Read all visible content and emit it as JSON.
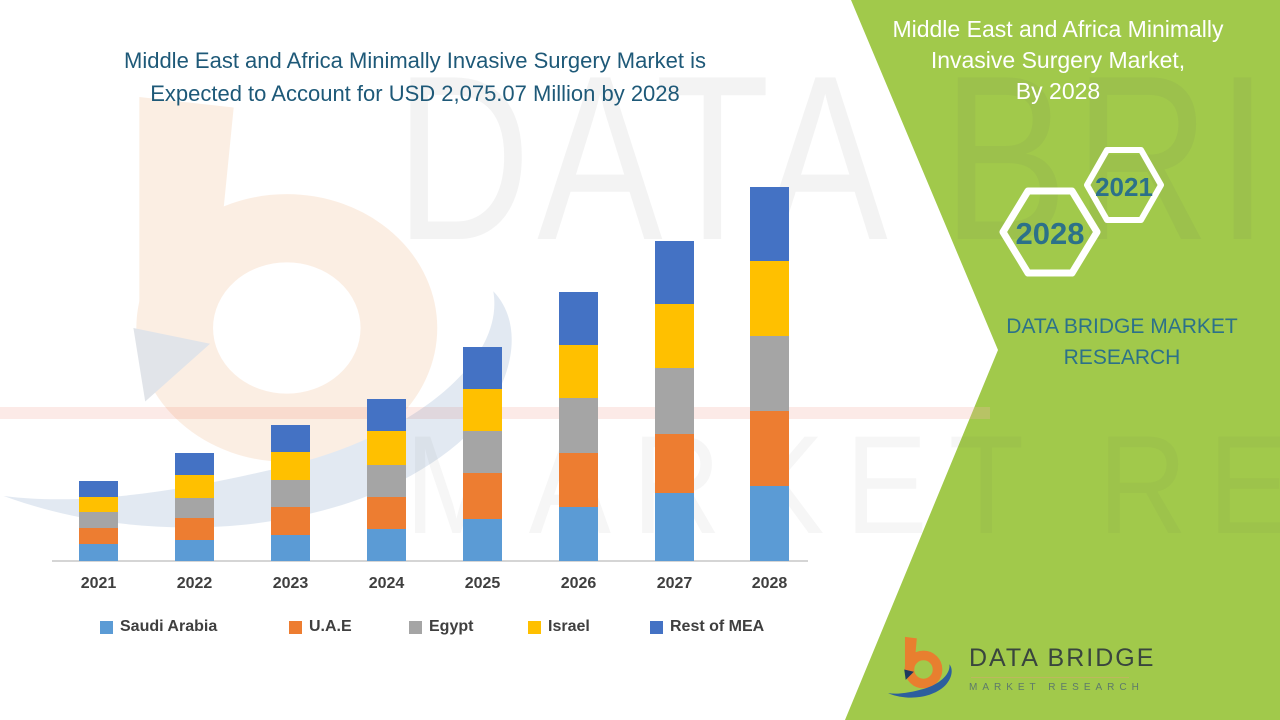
{
  "title": {
    "line1": "Middle East and Africa Minimally Invasive Surgery Market is",
    "line2": "Expected to Account for USD 2,075.07 Million by 2028",
    "color": "#1e5978"
  },
  "chart_data": {
    "type": "bar",
    "stacked": true,
    "title": "Middle East and Africa Minimally Invasive Surgery Market is Expected to Account for USD 2,075.07 Million by 2028",
    "unit": "USD Million",
    "categories": [
      "2021",
      "2022",
      "2023",
      "2024",
      "2025",
      "2026",
      "2027",
      "2028"
    ],
    "series": [
      {
        "name": "Saudi Arabia",
        "color": "#5B9BD5",
        "values": [
          94,
          116,
          144,
          176,
          233,
          301,
          377,
          416
        ]
      },
      {
        "name": "U.A.E",
        "color": "#ED7D31",
        "values": [
          90,
          124,
          157,
          176,
          253,
          299,
          329,
          416
        ]
      },
      {
        "name": "Egypt",
        "color": "#A5A5A5",
        "values": [
          89,
          111,
          151,
          177,
          235,
          305,
          364,
          416
        ]
      },
      {
        "name": "Israel",
        "color": "#FFC000",
        "values": [
          83,
          129,
          154,
          188,
          233,
          292,
          357,
          416
        ]
      },
      {
        "name": "Rest of MEA",
        "color": "#4472C4",
        "values": [
          89,
          120,
          148,
          176,
          235,
          292,
          351,
          411.07
        ]
      }
    ],
    "totals_usd_million_estimated": [
      445,
      600,
      754,
      893,
      1189,
      1489,
      1778,
      2075.07
    ],
    "note": "Segment values estimated from bar heights; 2028 total stated in title as USD 2,075.07 Million",
    "ylim": [
      0,
      2200
    ],
    "grid": false,
    "y_axis_visible": false,
    "legend_position": "bottom"
  },
  "side_panel": {
    "bg_color": "#A1C94B",
    "heading_color": "#FFFFFF",
    "accent_color": "#2C7189",
    "heading_line1": "Middle East and Africa Minimally",
    "heading_line2": "Invasive Surgery Market,",
    "heading_line3": "By 2028",
    "hexagon_small_label": "2021",
    "hexagon_large_label": "2028",
    "brand_line1": "DATA BRIDGE MARKET",
    "brand_line2": "RESEARCH"
  },
  "footer_logo": {
    "brand": "DATA BRIDGE",
    "sub": "MARKET RESEARCH"
  },
  "watermark": {
    "text1": "DATA BRIDGE",
    "text2": "MARKET RESEARCH"
  }
}
